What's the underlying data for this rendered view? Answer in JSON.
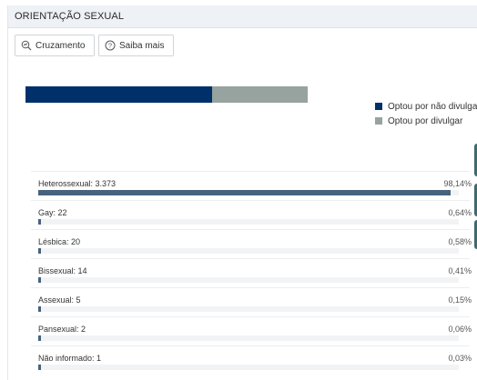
{
  "panel": {
    "title": "ORIENTAÇÃO SEXUAL"
  },
  "toolbar": {
    "cruzamento_label": "Cruzamento",
    "cruzamento_icon": "search-chart-icon",
    "saiba_label": "Saiba mais",
    "saiba_icon": "help-circle-icon"
  },
  "colors": {
    "dark_navy": "#00306a",
    "gray": "#97a39f",
    "row_fill": "#46627f",
    "side_tab": "#3e6a70"
  },
  "chart_data": [
    {
      "type": "bar",
      "stacked": true,
      "orientation": "horizontal",
      "categories": [
        "Optou por não divulgar",
        "Optou por divulgar"
      ],
      "values": [
        66,
        34
      ],
      "legend": {
        "placement": "right",
        "items": [
          "Optou por não divulgar",
          "Optou por divulgar"
        ]
      }
    },
    {
      "type": "bar",
      "orientation": "horizontal",
      "rows": [
        {
          "label": "Heterossexual: 3.373",
          "percent_label": "98,14%",
          "value": 98.14
        },
        {
          "label": "Gay: 22",
          "percent_label": "0,64%",
          "value": 0.64
        },
        {
          "label": "Lésbica: 20",
          "percent_label": "0,58%",
          "value": 0.58
        },
        {
          "label": "Bissexual: 14",
          "percent_label": "0,41%",
          "value": 0.41
        },
        {
          "label": "Assexual: 5",
          "percent_label": "0,15%",
          "value": 0.15
        },
        {
          "label": "Pansexual: 2",
          "percent_label": "0,06%",
          "value": 0.06
        },
        {
          "label": "Não informado: 1",
          "percent_label": "0,03%",
          "value": 0.03
        }
      ]
    }
  ]
}
